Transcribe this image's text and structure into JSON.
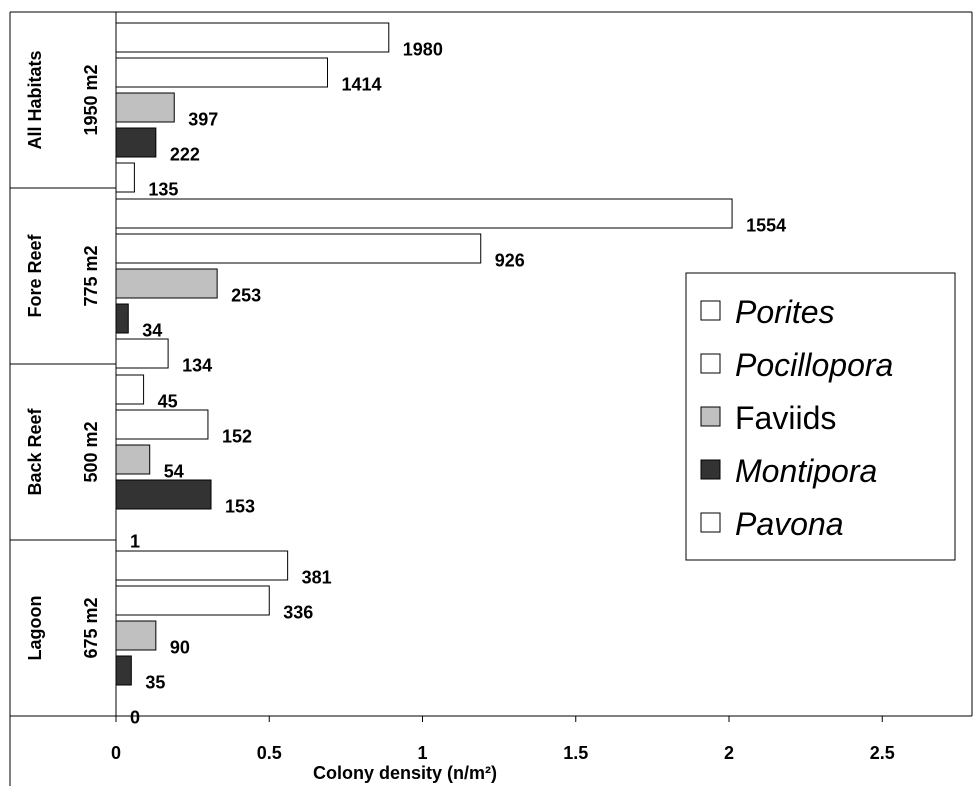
{
  "chart_data": {
    "type": "bar",
    "orientation": "horizontal",
    "xlabel": "Colony density (n/m²)",
    "xlim": [
      0,
      2.75
    ],
    "xticks": [
      0,
      0.5,
      1,
      1.5,
      2,
      2.5
    ],
    "xtick_labels": [
      "0",
      "0.5",
      "1",
      "1.5",
      "2",
      "2.5"
    ],
    "legend_position": "right",
    "groups": [
      {
        "name": "All Habitats",
        "area": "1950 m2",
        "bars": [
          {
            "series": "Porites",
            "value": 0.89,
            "label": "1980"
          },
          {
            "series": "Pocillopora",
            "value": 0.69,
            "label": "1414"
          },
          {
            "series": "Faviids",
            "value": 0.19,
            "label": "397"
          },
          {
            "series": "Montipora",
            "value": 0.13,
            "label": "222"
          },
          {
            "series": "Pavona",
            "value": 0.06,
            "label": "135"
          }
        ]
      },
      {
        "name": "Fore Reef",
        "area": "775 m2",
        "bars": [
          {
            "series": "Porites",
            "value": 2.01,
            "label": "1554"
          },
          {
            "series": "Pocillopora",
            "value": 1.19,
            "label": "926"
          },
          {
            "series": "Faviids",
            "value": 0.33,
            "label": "253"
          },
          {
            "series": "Montipora",
            "value": 0.04,
            "label": "34"
          },
          {
            "series": "Pavona",
            "value": 0.17,
            "label": "134"
          }
        ]
      },
      {
        "name": "Back Reef",
        "area": "500 m2",
        "bars": [
          {
            "series": "Porites",
            "value": 0.09,
            "label": "45"
          },
          {
            "series": "Pocillopora",
            "value": 0.3,
            "label": "152"
          },
          {
            "series": "Faviids",
            "value": 0.11,
            "label": "54"
          },
          {
            "series": "Montipora",
            "value": 0.31,
            "label": "153"
          },
          {
            "series": "Pavona",
            "value": 0.0,
            "label": "1"
          }
        ]
      },
      {
        "name": "Lagoon",
        "area": "675 m2",
        "bars": [
          {
            "series": "Porites",
            "value": 0.56,
            "label": "381"
          },
          {
            "series": "Pocillopora",
            "value": 0.5,
            "label": "336"
          },
          {
            "series": "Faviids",
            "value": 0.13,
            "label": "90"
          },
          {
            "series": "Montipora",
            "value": 0.05,
            "label": "35"
          },
          {
            "series": "Pavona",
            "value": 0.0,
            "label": "0"
          }
        ]
      }
    ],
    "series": [
      {
        "name": "Porites",
        "color": "#ffffff",
        "italic": true
      },
      {
        "name": "Pocillopora",
        "color": "#ffffff",
        "italic": true
      },
      {
        "name": "Faviids",
        "color": "#c0c0c0",
        "italic": false
      },
      {
        "name": "Montipora",
        "color": "#333333",
        "italic": true
      },
      {
        "name": "Pavona",
        "color": "#ffffff",
        "italic": true
      }
    ]
  }
}
